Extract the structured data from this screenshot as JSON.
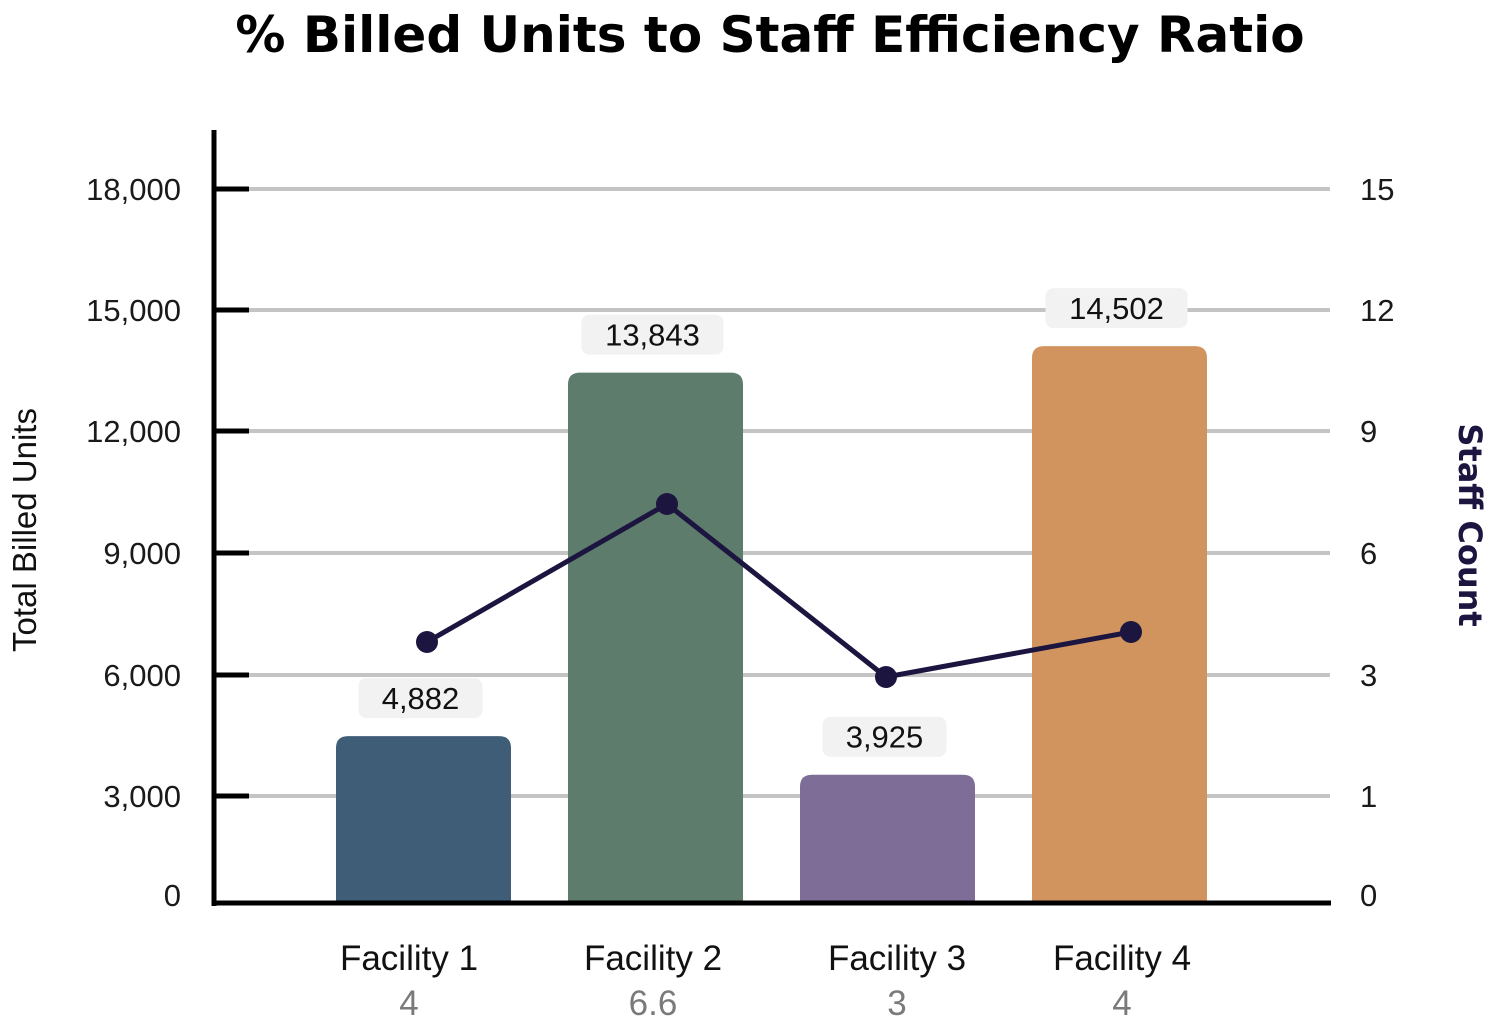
{
  "chart_data": {
    "type": "bar",
    "title": "% Billed Units to Staff Efficiency Ratio",
    "categories": [
      "Facility 1",
      "Facility 2",
      "Facility 3",
      "Facility 4"
    ],
    "category_sublabels": [
      "4",
      "6.6",
      "3",
      "4"
    ],
    "series": [
      {
        "name": "Total Billed Units",
        "type": "bar",
        "axis": "left",
        "values": [
          4882,
          13843,
          3925,
          14502
        ],
        "value_labels": [
          "4,882",
          "13,843",
          "3,925",
          "14,502"
        ],
        "colors": [
          "#405d78",
          "#5d7c6c",
          "#7d6d97",
          "#d2945e"
        ]
      },
      {
        "name": "Staff Count",
        "type": "line",
        "axis": "right",
        "values": [
          4,
          6.6,
          3,
          4
        ],
        "color": "#1c1540"
      }
    ],
    "ylabel": "Total Billed Units",
    "y2label": "Staff Count",
    "left_axis": {
      "ticks": [
        0,
        3000,
        6000,
        9000,
        12000,
        15000,
        18000
      ],
      "tick_labels": [
        "0",
        "3,000",
        "6,000",
        "9,000",
        "12,000",
        "15,000",
        "18,000"
      ]
    },
    "right_axis": {
      "tick_labels": [
        "0",
        "1",
        "3",
        "6",
        "9",
        "12",
        "15"
      ]
    },
    "grid": true,
    "gridline_color": "#c4c4c4"
  }
}
